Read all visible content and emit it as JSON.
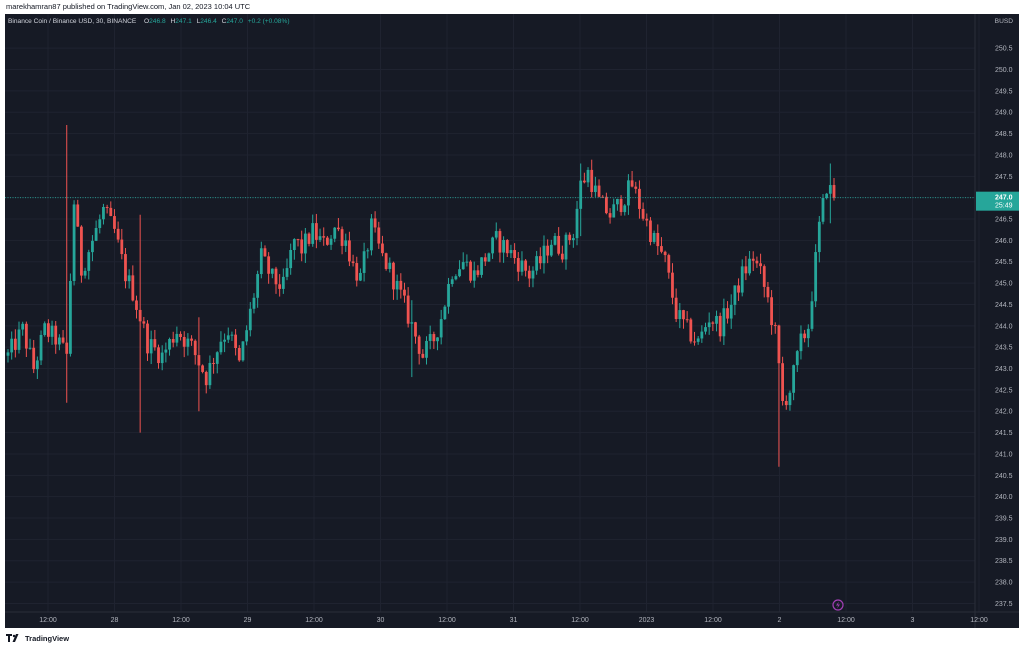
{
  "header": {
    "publish_text": "marekhamran87 published on TradingView.com, Jan 02, 2023 10:04 UTC"
  },
  "legend": {
    "symbol": "Binance Coin / Binance USD, 30, BINANCE",
    "o_label": "O",
    "o_value": "246.8",
    "h_label": "H",
    "h_value": "247.1",
    "l_label": "L",
    "l_value": "246.4",
    "c_label": "C",
    "c_value": "247.0",
    "change": "+0.2 (+0.08%)"
  },
  "currency_label": "BUSD",
  "price_tag": {
    "price": "247.0",
    "countdown": "25:49"
  },
  "footer": {
    "brand": "TradingView"
  },
  "colors": {
    "background": "#161a25",
    "up": "#26a69a",
    "down": "#ef5350",
    "grid": "#1f2330",
    "axis_text": "#b2b5be",
    "price_line": "#26a69a",
    "marker": "#a33fb5"
  },
  "chart_data": {
    "type": "candlestick",
    "title": "Binance Coin / Binance USD, 30, BINANCE",
    "ylabel": "BUSD",
    "ylim": [
      237.3,
      251.3
    ],
    "y_ticks": [
      "250.5",
      "250.0",
      "249.5",
      "249.0",
      "248.5",
      "248.0",
      "247.5",
      "247.0",
      "246.5",
      "246.0",
      "245.5",
      "245.0",
      "244.5",
      "244.0",
      "243.5",
      "243.0",
      "242.5",
      "242.0",
      "241.5",
      "241.0",
      "240.5",
      "240.0",
      "239.5",
      "239.0",
      "238.5",
      "238.0",
      "237.5"
    ],
    "x_ticks": [
      "12:00",
      "28",
      "12:00",
      "29",
      "12:00",
      "30",
      "12:00",
      "31",
      "12:00",
      "2023",
      "12:00",
      "2",
      "12:00",
      "3",
      "12:00"
    ],
    "last_price": 247.0,
    "grid": true,
    "key_points": [
      {
        "bar": 0,
        "price": 243.3
      },
      {
        "bar": 4,
        "price": 243.9
      },
      {
        "bar": 7,
        "price": 243.0
      },
      {
        "bar": 10,
        "price": 243.9
      },
      {
        "bar": 13,
        "price": 243.7
      },
      {
        "bar": 16,
        "price": 243.3
      },
      {
        "bar": 18,
        "price": 246.9
      },
      {
        "bar": 20,
        "price": 245.3
      },
      {
        "bar": 23,
        "price": 246.0
      },
      {
        "bar": 26,
        "price": 246.7
      },
      {
        "bar": 29,
        "price": 246.2
      },
      {
        "bar": 32,
        "price": 245.2
      },
      {
        "bar": 34,
        "price": 244.8
      },
      {
        "bar": 38,
        "price": 243.6
      },
      {
        "bar": 42,
        "price": 243.3
      },
      {
        "bar": 46,
        "price": 243.9
      },
      {
        "bar": 50,
        "price": 243.5
      },
      {
        "bar": 54,
        "price": 242.8
      },
      {
        "bar": 58,
        "price": 243.7
      },
      {
        "bar": 60,
        "price": 243.9
      },
      {
        "bar": 63,
        "price": 243.1
      },
      {
        "bar": 66,
        "price": 244.3
      },
      {
        "bar": 69,
        "price": 245.6
      },
      {
        "bar": 72,
        "price": 245.1
      },
      {
        "bar": 75,
        "price": 244.9
      },
      {
        "bar": 78,
        "price": 246.0
      },
      {
        "bar": 80,
        "price": 245.8
      },
      {
        "bar": 83,
        "price": 246.2
      },
      {
        "bar": 86,
        "price": 245.9
      },
      {
        "bar": 89,
        "price": 246.3
      },
      {
        "bar": 92,
        "price": 246.0
      },
      {
        "bar": 94,
        "price": 245.4
      },
      {
        "bar": 96,
        "price": 245.1
      },
      {
        "bar": 99,
        "price": 246.3
      },
      {
        "bar": 102,
        "price": 245.6
      },
      {
        "bar": 104,
        "price": 245.3
      },
      {
        "bar": 107,
        "price": 244.7
      },
      {
        "bar": 110,
        "price": 244.0
      },
      {
        "bar": 113,
        "price": 243.3
      },
      {
        "bar": 116,
        "price": 243.7
      },
      {
        "bar": 118,
        "price": 244.2
      },
      {
        "bar": 121,
        "price": 245.3
      },
      {
        "bar": 124,
        "price": 245.5
      },
      {
        "bar": 127,
        "price": 245.2
      },
      {
        "bar": 130,
        "price": 245.6
      },
      {
        "bar": 133,
        "price": 246.0
      },
      {
        "bar": 136,
        "price": 245.8
      },
      {
        "bar": 139,
        "price": 245.5
      },
      {
        "bar": 142,
        "price": 245.2
      },
      {
        "bar": 145,
        "price": 245.5
      },
      {
        "bar": 148,
        "price": 246.0
      },
      {
        "bar": 151,
        "price": 245.8
      },
      {
        "bar": 154,
        "price": 246.2
      },
      {
        "bar": 156,
        "price": 247.3
      },
      {
        "bar": 158,
        "price": 247.6
      },
      {
        "bar": 161,
        "price": 246.9
      },
      {
        "bar": 164,
        "price": 246.6
      },
      {
        "bar": 167,
        "price": 246.9
      },
      {
        "bar": 170,
        "price": 247.3
      },
      {
        "bar": 173,
        "price": 246.6
      },
      {
        "bar": 176,
        "price": 246.0
      },
      {
        "bar": 179,
        "price": 245.5
      },
      {
        "bar": 182,
        "price": 244.3
      },
      {
        "bar": 185,
        "price": 243.9
      },
      {
        "bar": 188,
        "price": 243.6
      },
      {
        "bar": 191,
        "price": 244.2
      },
      {
        "bar": 194,
        "price": 244.0
      },
      {
        "bar": 197,
        "price": 244.5
      },
      {
        "bar": 200,
        "price": 245.2
      },
      {
        "bar": 203,
        "price": 245.6
      },
      {
        "bar": 205,
        "price": 245.2
      },
      {
        "bar": 207,
        "price": 244.6
      },
      {
        "bar": 209,
        "price": 243.8
      },
      {
        "bar": 211,
        "price": 242.2
      },
      {
        "bar": 213,
        "price": 242.5
      },
      {
        "bar": 216,
        "price": 243.6
      },
      {
        "bar": 218,
        "price": 244.0
      },
      {
        "bar": 221,
        "price": 246.3
      },
      {
        "bar": 223,
        "price": 247.3
      },
      {
        "bar": 225,
        "price": 247.0
      }
    ],
    "spikes": [
      {
        "bar": 16,
        "high": 248.7,
        "low": 242.2
      },
      {
        "bar": 36,
        "high": 246.6,
        "low": 241.5
      },
      {
        "bar": 52,
        "high": 244.2,
        "low": 242.0
      },
      {
        "bar": 110,
        "high": 244.6,
        "low": 242.8
      },
      {
        "bar": 156,
        "high": 247.8,
        "low": 246.1
      },
      {
        "bar": 210,
        "high": 243.2,
        "low": 240.7
      },
      {
        "bar": 224,
        "high": 247.8,
        "low": 246.4
      }
    ],
    "num_bars": 226
  }
}
